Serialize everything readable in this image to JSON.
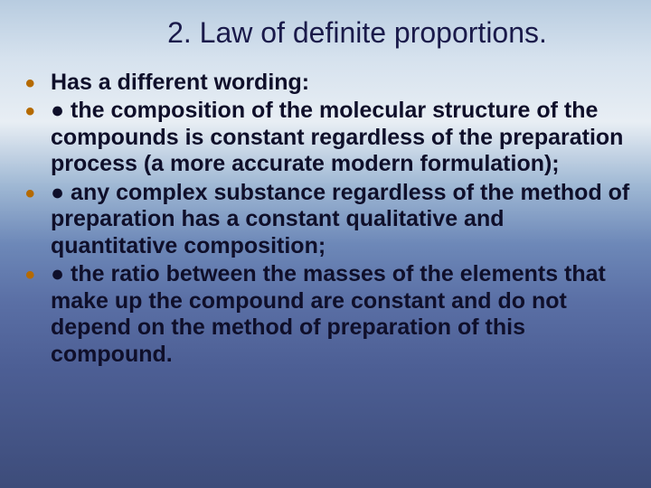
{
  "slide": {
    "title": "2. Law of definite proportions.",
    "bullets": [
      "Has a different wording:",
      "● the composition of the molecular structure of the compounds is constant regardless of the preparation process (a more accurate modern formulation);",
      "● any complex substance regardless of the method of preparation has a constant qualitative and quantitative composition;",
      "● the ratio between the masses of the elements that make up the compound are constant and do not depend on the method of preparation of this compound."
    ]
  },
  "style": {
    "title_color": "#1a1a4a",
    "title_fontsize": 32,
    "bullet_color": "#0f0f2a",
    "bullet_marker_color": "#b56a00",
    "bullet_fontsize": 25,
    "background_gradient": [
      "#b8cce0",
      "#d6e2ee",
      "#e8eef4",
      "#9fb8d4",
      "#6d88b8",
      "#5a6fa5",
      "#4d5f95",
      "#3d4c7a"
    ]
  }
}
